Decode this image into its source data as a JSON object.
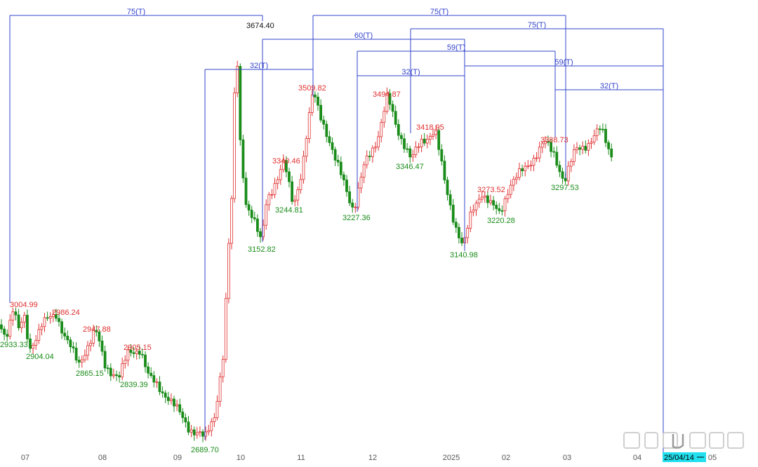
{
  "chart_data": {
    "type": "candlestick",
    "title": "",
    "colors": {
      "up": "#e03030",
      "down": "#1a8c1a",
      "cycle_line": "#3344cc",
      "cursor_bg": "#22e0ee"
    },
    "x_ticks": [
      "07",
      "08",
      "09",
      "10",
      "11",
      "12",
      "2025",
      "02",
      "03",
      "04",
      "05"
    ],
    "y_range": [
      2650,
      3700
    ],
    "price_labels": [
      {
        "text": "3004.99",
        "color": "up",
        "value": 3004.99
      },
      {
        "text": "2933.33",
        "color": "down",
        "value": 2933.33
      },
      {
        "text": "2986.24",
        "color": "up",
        "value": 2986.24
      },
      {
        "text": "2904.04",
        "color": "down",
        "value": 2904.04
      },
      {
        "text": "2947.88",
        "color": "up",
        "value": 2947.88
      },
      {
        "text": "2865.15",
        "color": "down",
        "value": 2865.15
      },
      {
        "text": "2905.15",
        "color": "up",
        "value": 2905.15
      },
      {
        "text": "2839.39",
        "color": "down",
        "value": 2839.39
      },
      {
        "text": "2689.70",
        "color": "down",
        "value": 2689.7
      },
      {
        "text": "3674.40",
        "color": "black",
        "value": 3674.4
      },
      {
        "text": "3152.82",
        "color": "down",
        "value": 3152.82
      },
      {
        "text": "3340.46",
        "color": "up",
        "value": 3340.46
      },
      {
        "text": "3244.81",
        "color": "down",
        "value": 3244.81
      },
      {
        "text": "3509.82",
        "color": "up",
        "value": 3509.82
      },
      {
        "text": "3227.36",
        "color": "down",
        "value": 3227.36
      },
      {
        "text": "3494.87",
        "color": "up",
        "value": 3494.87
      },
      {
        "text": "3346.47",
        "color": "down",
        "value": 3346.47
      },
      {
        "text": "3418.95",
        "color": "up",
        "value": 3418.95
      },
      {
        "text": "3140.98",
        "color": "down",
        "value": 3140.98
      },
      {
        "text": "3273.52",
        "color": "up",
        "value": 3273.52
      },
      {
        "text": "3220.28",
        "color": "down",
        "value": 3220.28
      },
      {
        "text": "3388.73",
        "color": "up",
        "value": 3388.73
      },
      {
        "text": "3297.53",
        "color": "down",
        "value": 3297.53
      }
    ],
    "cycles": [
      {
        "label": "75(T)"
      },
      {
        "label": "32(T)"
      },
      {
        "label": "75(T)"
      },
      {
        "label": "60(T)"
      },
      {
        "label": "75(T)"
      },
      {
        "label": "59(T)"
      },
      {
        "label": "32(T)"
      },
      {
        "label": "59(T)"
      },
      {
        "label": "32(T)"
      }
    ],
    "date_cursor": "25/04/14",
    "grid": false,
    "legend": "none"
  }
}
